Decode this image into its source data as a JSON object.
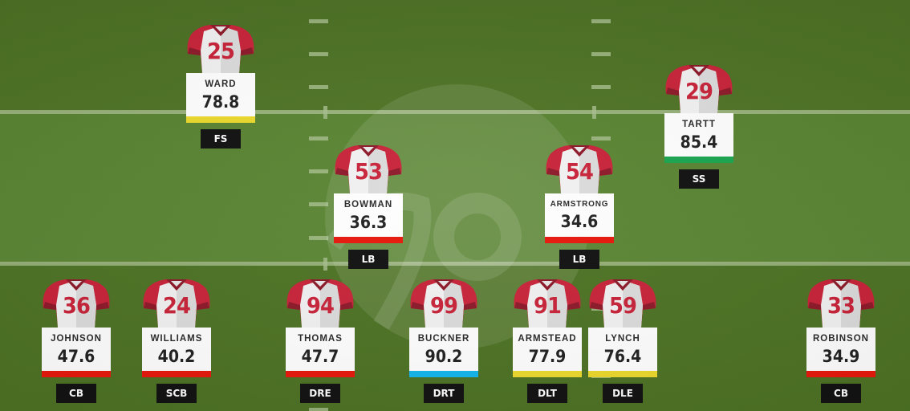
{
  "colors": {
    "grade_red": "#e8180c",
    "grade_yellow": "#ecd92d",
    "grade_green": "#1aa650",
    "grade_blue": "#14b5ec",
    "jersey_red": "#c9243a",
    "jersey_dark_red": "#8e1a2a",
    "jersey_white": "#f2f2f2",
    "position_bg": "#121212"
  },
  "players": [
    {
      "number": "25",
      "name": "WARD",
      "grade": "78.8",
      "grade_color": "#ecd92d",
      "position": "FS"
    },
    {
      "number": "29",
      "name": "TARTT",
      "grade": "85.4",
      "grade_color": "#1aa650",
      "position": "SS"
    },
    {
      "number": "53",
      "name": "BOWMAN",
      "grade": "36.3",
      "grade_color": "#e8180c",
      "position": "LB"
    },
    {
      "number": "54",
      "name": "ARMSTRONG",
      "grade": "34.6",
      "grade_color": "#e8180c",
      "position": "LB"
    },
    {
      "number": "36",
      "name": "JOHNSON",
      "grade": "47.6",
      "grade_color": "#e8180c",
      "position": "CB"
    },
    {
      "number": "24",
      "name": "WILLIAMS",
      "grade": "40.2",
      "grade_color": "#e8180c",
      "position": "SCB"
    },
    {
      "number": "94",
      "name": "THOMAS",
      "grade": "47.7",
      "grade_color": "#e8180c",
      "position": "DRE"
    },
    {
      "number": "99",
      "name": "BUCKNER",
      "grade": "90.2",
      "grade_color": "#14b5ec",
      "position": "DRT"
    },
    {
      "number": "91",
      "name": "ARMSTEAD",
      "grade": "77.9",
      "grade_color": "#ecd92d",
      "position": "DLT"
    },
    {
      "number": "59",
      "name": "LYNCH",
      "grade": "76.4",
      "grade_color": "#ecd92d",
      "position": "DLE"
    },
    {
      "number": "33",
      "name": "ROBINSON",
      "grade": "34.9",
      "grade_color": "#e8180c",
      "position": "CB"
    }
  ]
}
